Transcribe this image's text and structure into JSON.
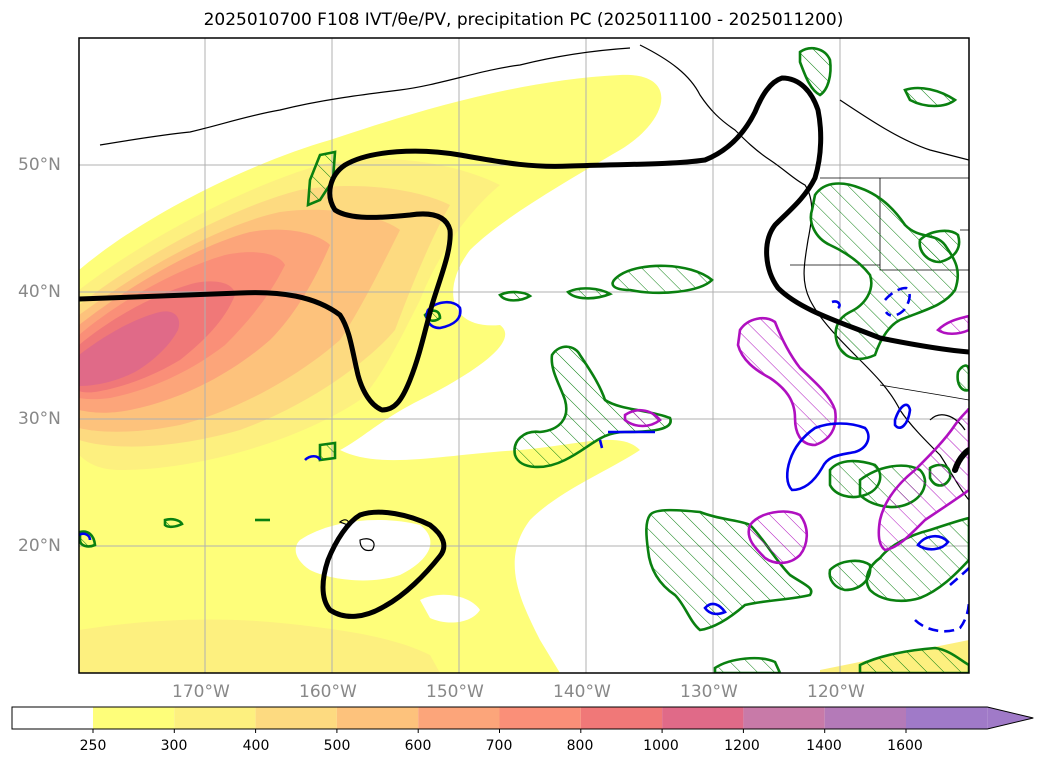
{
  "title": "2025010700 F108 IVT/θe/PV, precipitation PC (2025011100 - 2025011200)",
  "map": {
    "lat_labels": [
      "50°N",
      "40°N",
      "30°N",
      "20°N"
    ],
    "lon_labels": [
      "170°W",
      "160°W",
      "150°W",
      "140°W",
      "130°W",
      "120°W"
    ],
    "extent": {
      "lon_min": -180,
      "lon_max": -110,
      "lat_min": 10,
      "lat_max": 60
    }
  },
  "colorbar": {
    "levels": [
      "250",
      "300",
      "400",
      "500",
      "600",
      "700",
      "800",
      "1000",
      "1200",
      "1400",
      "1600"
    ],
    "colors": [
      "#ffffff",
      "#fefe7a",
      "#fdf07f",
      "#fdda80",
      "#fdc27c",
      "#fca57a",
      "#fa8f78",
      "#f07878",
      "#e06a88",
      "#c87aa8",
      "#b47ab8",
      "#a07ac8"
    ],
    "extend": "max"
  },
  "overlays": {
    "pv_contour_color": "#000000",
    "precip_positive_color": "#0a8010",
    "precip_negative_color": "#b010c0",
    "theta_e_color": "#0000ee"
  }
}
